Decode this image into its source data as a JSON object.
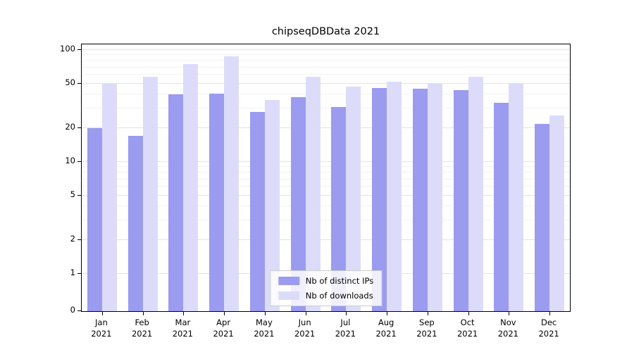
{
  "title": "chipseqDBData 2021",
  "colors": {
    "distinct_ips": "#9b9bf0",
    "downloads": "#dcdcfa",
    "grid_major": "#e3e3e3",
    "grid_minor": "#f2f2f2",
    "axis": "#000000"
  },
  "chart_data": {
    "type": "bar",
    "title": "chipseqDBData 2021",
    "categories": [
      "Jan 2021",
      "Feb 2021",
      "Mar 2021",
      "Apr 2021",
      "May 2021",
      "Jun 2021",
      "Jul 2021",
      "Aug 2021",
      "Sep 2021",
      "Oct 2021",
      "Nov 2021",
      "Dec 2021"
    ],
    "series": [
      {
        "name": "Nb of distinct IPs",
        "color": "#9b9bf0",
        "values": [
          20,
          17,
          40,
          41,
          28,
          38,
          31,
          46,
          45,
          44,
          34,
          22
        ]
      },
      {
        "name": "Nb of downloads",
        "color": "#dcdcfa",
        "values": [
          50,
          58,
          75,
          88,
          36,
          58,
          47,
          52,
          50,
          58,
          50,
          26
        ]
      }
    ],
    "yscale": "symlog",
    "yticks": [
      0,
      1,
      2,
      5,
      10,
      20,
      50,
      100
    ],
    "ylim": [
      0,
      112
    ],
    "xlabel": "",
    "ylabel": "",
    "grid": true,
    "legend_position": "lower center"
  }
}
